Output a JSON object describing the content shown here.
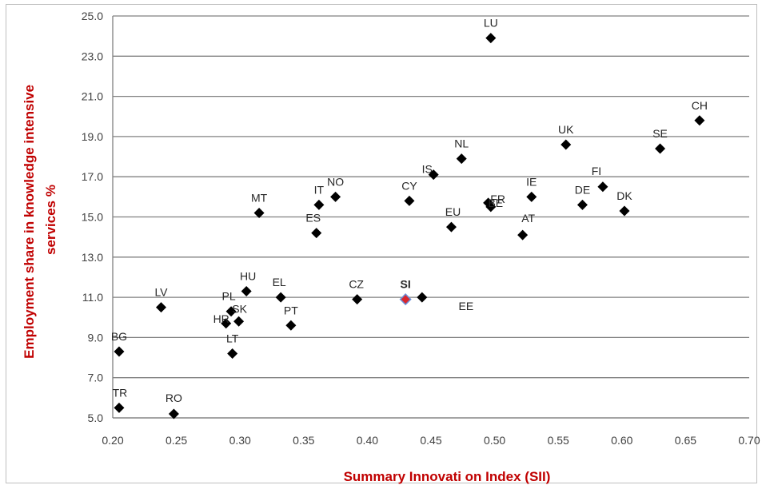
{
  "chart_data": {
    "type": "scatter",
    "xlabel": "Summary Innovati  on Index (SII)",
    "ylabel_lines": [
      "Employment share in knowledge intensive",
      "services %"
    ],
    "xlim": [
      0.2,
      0.7
    ],
    "ylim": [
      5.0,
      25.0
    ],
    "x_ticks": [
      "0.20",
      "0.25",
      "0.30",
      "0.35",
      "0.40",
      "0.45",
      "0.50",
      "0.55",
      "0.60",
      "0.65",
      "0.70"
    ],
    "y_ticks": [
      "5.0",
      "7.0",
      "9.0",
      "11.0",
      "13.0",
      "15.0",
      "17.0",
      "19.0",
      "21.0",
      "23.0",
      "25.0"
    ],
    "grid": "horizontal",
    "colors": {
      "marker": "#000000",
      "highlight": "#d9262d",
      "highlight_edge": "#6b8fd6",
      "axis_title": "#c00000",
      "grid": "#808080"
    },
    "points": [
      {
        "label": "LU",
        "x": 0.497,
        "y": 23.9
      },
      {
        "label": "CH",
        "x": 0.661,
        "y": 19.8
      },
      {
        "label": "UK",
        "x": 0.556,
        "y": 18.6
      },
      {
        "label": "SE",
        "x": 0.63,
        "y": 18.4
      },
      {
        "label": "NL",
        "x": 0.474,
        "y": 17.9
      },
      {
        "label": "IS",
        "x": 0.452,
        "y": 17.1
      },
      {
        "label": "FI",
        "x": 0.585,
        "y": 16.5
      },
      {
        "label": "NO",
        "x": 0.375,
        "y": 16.0
      },
      {
        "label": "IE",
        "x": 0.529,
        "y": 16.0
      },
      {
        "label": "CY",
        "x": 0.433,
        "y": 15.8
      },
      {
        "label": "FR",
        "x": 0.495,
        "y": 15.7
      },
      {
        "label": "IT",
        "x": 0.362,
        "y": 15.6
      },
      {
        "label": "DE",
        "x": 0.569,
        "y": 15.6
      },
      {
        "label": "BE",
        "x": 0.497,
        "y": 15.5
      },
      {
        "label": "DK",
        "x": 0.602,
        "y": 15.3
      },
      {
        "label": "MT",
        "x": 0.315,
        "y": 15.2
      },
      {
        "label": "EU",
        "x": 0.466,
        "y": 14.5
      },
      {
        "label": "ES",
        "x": 0.36,
        "y": 14.2
      },
      {
        "label": "AT",
        "x": 0.522,
        "y": 14.1
      },
      {
        "label": "HU",
        "x": 0.305,
        "y": 11.3
      },
      {
        "label": "EL",
        "x": 0.332,
        "y": 11.0
      },
      {
        "label": "EE",
        "x": 0.443,
        "y": 11.0
      },
      {
        "label": "CZ",
        "x": 0.392,
        "y": 10.9
      },
      {
        "label": "SI",
        "x": 0.43,
        "y": 10.9,
        "highlight": true
      },
      {
        "label": "LV",
        "x": 0.238,
        "y": 10.5
      },
      {
        "label": "PL",
        "x": 0.293,
        "y": 10.3
      },
      {
        "label": "SK",
        "x": 0.299,
        "y": 9.8
      },
      {
        "label": "HR",
        "x": 0.289,
        "y": 9.7
      },
      {
        "label": "PT",
        "x": 0.34,
        "y": 9.6
      },
      {
        "label": "BG",
        "x": 0.205,
        "y": 8.3
      },
      {
        "label": "LT",
        "x": 0.294,
        "y": 8.2
      },
      {
        "label": "TR",
        "x": 0.205,
        "y": 5.5
      },
      {
        "label": "RO",
        "x": 0.248,
        "y": 5.2
      }
    ]
  }
}
